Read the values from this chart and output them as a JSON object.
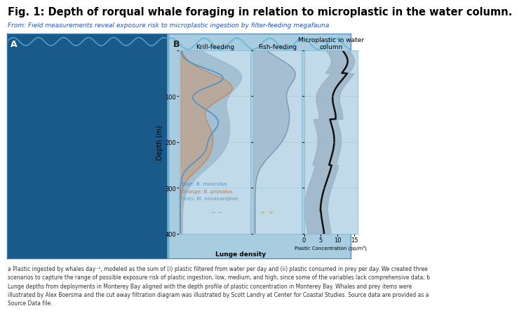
{
  "title": "Fig. 1: Depth of rorqual whale foraging in relation to microplastic in the water column.",
  "subtitle": "From: Field measurements reveal exposure risk to microplastic ingestion by filter-feeding megafauna",
  "panel_A_label": "A",
  "panel_B_label": "B",
  "depth_ticks": [
    0,
    100,
    200,
    300,
    400
  ],
  "krill_title": "Krill-feeding",
  "fish_title": "Fish-feeding",
  "micro_title": "Microplastic in water\ncolumn",
  "ylabel": "Depth (m)",
  "xlabel_krill": "Lunge density",
  "xlabel_micro": "Plastic Concentration (pp/m³)",
  "micro_xticks": [
    0,
    5,
    10,
    15
  ],
  "legend_blue": "Blue: B. musculus",
  "legend_orange": "Orange: B. physalus",
  "legend_grey": "Grey: M. novaeangliae",
  "panel_A_bg": "#1a5a8a",
  "panel_B_bg": "#a8cce0",
  "plot_bg": "#c0daea",
  "blue_line": "#4a90c4",
  "orange_fill": "#c89a7a",
  "grey_shade": "#9ab8cc",
  "fish_shade": "#a0b8cc",
  "micro_shade": "#9ab0c4",
  "black_line": "#111111",
  "title_fontsize": 10.5,
  "subtitle_fontsize": 6.5,
  "axis_fontsize": 7,
  "tick_fontsize": 6,
  "footer": "a Plastic ingested by whales day⁻¹, modeled as the sum of (i) plastic filtered from water per day and (ii) plastic consumed in prey per day. We created three\nscenarios to capture the range of possible exposure risk of plastic ingestion, low, medium, and high, since some of the variables lack comprehensive data; b\nLunge depths from deployments in Monterey Bay aligned with the depth profile of plastic concentration in Monterey Bay. Whales and prey items were\nillustrated by Alex Boersma and the cut away filtration diagram was illustrated by Scott Landry at Center for Coastal Studies. Source data are provided as a\nSource Data file."
}
